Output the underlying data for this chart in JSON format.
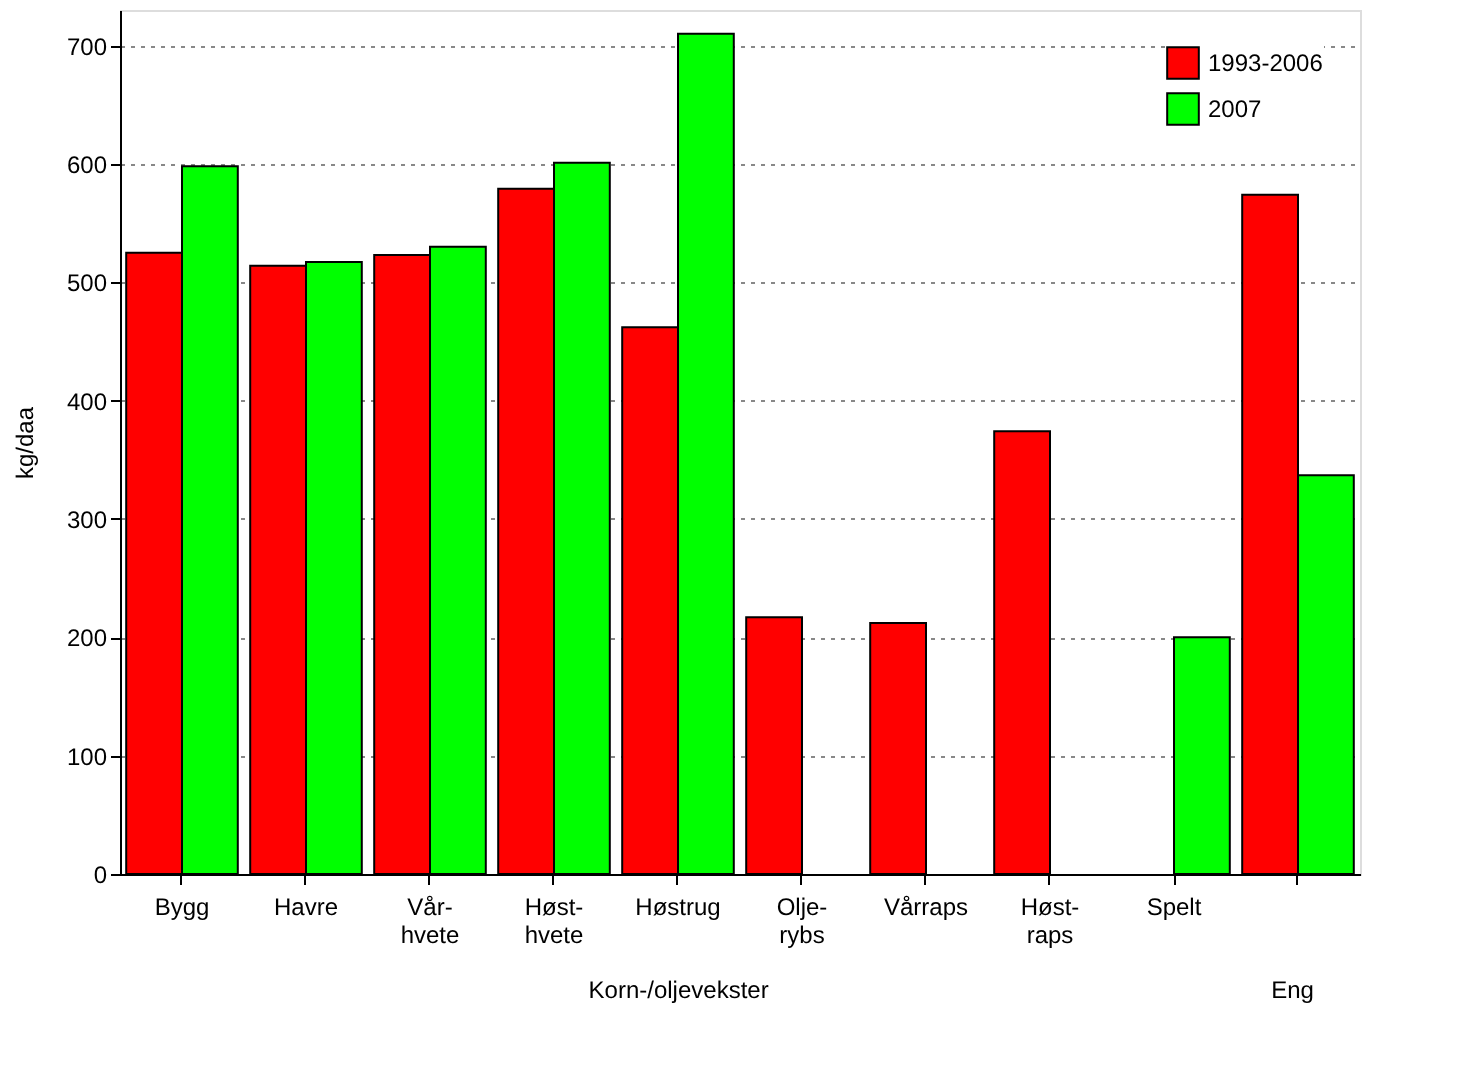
{
  "chart_data": {
    "type": "bar",
    "ylabel": "kg/daa",
    "categories": [
      "Bygg",
      "Havre",
      "Vår-\nhvete",
      "Høst-\nhvete",
      "Høstrug",
      "Olje-\nrybs",
      "Vårraps",
      "Høst-\nraps",
      "Spelt",
      null
    ],
    "series": [
      {
        "name": "1993-2006",
        "color": "#ff0000",
        "values": [
          525,
          514,
          523,
          579,
          462,
          217,
          212,
          374,
          null,
          574
        ]
      },
      {
        "name": "2007",
        "color": "#00ff00",
        "values": [
          598,
          517,
          530,
          601,
          710,
          null,
          null,
          null,
          200,
          337
        ]
      }
    ],
    "ylim": [
      0,
      730
    ],
    "yticks": [
      0,
      100,
      200,
      300,
      400,
      500,
      600,
      700
    ],
    "grid": "y",
    "legend": "top right",
    "annotations": [
      "Korn-/oljevekster",
      "Eng"
    ]
  }
}
